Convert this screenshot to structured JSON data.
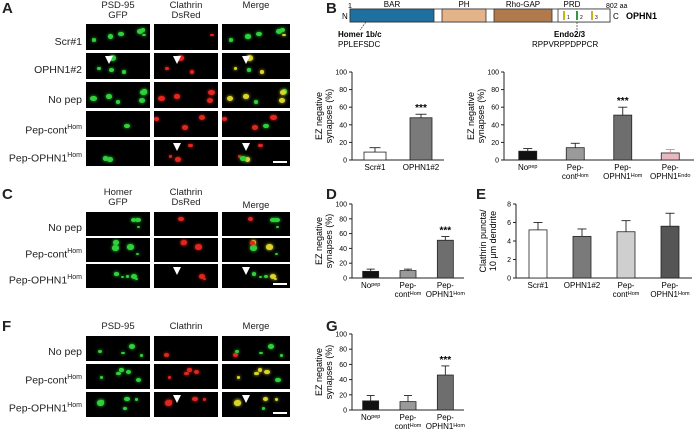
{
  "panel_labels": [
    "A",
    "B",
    "C",
    "D",
    "E",
    "F",
    "G"
  ],
  "micro": {
    "A": {
      "headers": [
        [
          "PSD-95",
          "GFP"
        ],
        [
          "Clathrin",
          "DsRed"
        ],
        [
          "Merge",
          ""
        ]
      ],
      "rows": [
        "Scr#1",
        "OPHN1#2",
        "No pep",
        "Pep-cont",
        "Pep-OPHN1"
      ],
      "row_sup": [
        "",
        "",
        "",
        "Hom",
        "Hom"
      ]
    },
    "C": {
      "headers": [
        [
          "Homer",
          "GFP"
        ],
        [
          "Clathrin",
          "DsRed"
        ],
        [
          "Merge",
          ""
        ]
      ],
      "rows": [
        "No pep",
        "Pep-cont",
        "Pep-OPHN1"
      ],
      "row_sup": [
        "",
        "Hom",
        "Hom"
      ]
    },
    "F": {
      "headers": [
        [
          "PSD-95",
          ""
        ],
        [
          "Clathrin",
          ""
        ],
        [
          "Merge",
          ""
        ]
      ],
      "rows": [
        "No pep",
        "Pep-cont",
        "Pep-OPHN1"
      ],
      "row_sup": [
        "",
        "Hom",
        "Hom"
      ]
    }
  },
  "domain_diagram": {
    "protein": "OPHN1",
    "start": "1",
    "end_label": "802 aa",
    "n_term": "N",
    "c_term": "C",
    "domains": [
      "BAR",
      "PH",
      "Rho-GAP",
      "PRD"
    ],
    "domain_colors": [
      "#1f6fa0",
      "#e3b48a",
      "#b07a4c",
      "#ffffff"
    ],
    "prd_ticks": [
      "1",
      "2",
      "3"
    ],
    "homer_site": "Homer 1b/c",
    "homer_seq": "PPLEFSDC",
    "endo_site": "Endo2/3",
    "endo_seq": "RPPVRPPDPPCR"
  },
  "chart_data": [
    {
      "panel": "B (left)",
      "type": "bar",
      "categories": [
        "Scr#1",
        "OPHN1#2"
      ],
      "values": [
        9,
        48
      ],
      "errors": [
        5,
        4
      ],
      "colors": [
        "#ffffff",
        "#7a7a7a"
      ],
      "significance": [
        "",
        "***"
      ],
      "ylabel": [
        "EZ negative",
        "synapses (%)"
      ],
      "ylim": [
        0,
        100
      ],
      "yticks": [
        0,
        20,
        40,
        60,
        80,
        100
      ]
    },
    {
      "panel": "B (right)",
      "type": "bar",
      "categories": [
        "No pep",
        "Pep-cont Hom",
        "Pep-OPHN1 Hom",
        "Pep-OPHN1 Endo"
      ],
      "values": [
        10,
        14,
        51,
        8
      ],
      "errors": [
        3,
        5,
        9,
        4
      ],
      "colors": [
        "#111111",
        "#9a9a9a",
        "#6e6e6e",
        "#e8b8c0"
      ],
      "significance": [
        "",
        "",
        "***",
        ""
      ],
      "ylabel": [
        "EZ negative",
        "synapses (%)"
      ],
      "ylim": [
        0,
        100
      ],
      "yticks": [
        0,
        20,
        40,
        60,
        80,
        100
      ]
    },
    {
      "panel": "D",
      "type": "bar",
      "categories": [
        "No pep",
        "Pep-cont Hom",
        "Pep-OPHN1 Hom"
      ],
      "values": [
        9,
        10,
        51
      ],
      "errors": [
        3,
        2,
        5
      ],
      "colors": [
        "#111111",
        "#9a9a9a",
        "#6e6e6e"
      ],
      "significance": [
        "",
        "",
        "***"
      ],
      "ylabel": [
        "EZ negative",
        "synapses (%)"
      ],
      "ylim": [
        0,
        100
      ],
      "yticks": [
        0,
        20,
        40,
        60,
        80,
        100
      ]
    },
    {
      "panel": "E",
      "type": "bar",
      "categories": [
        "Scr#1",
        "OPHN1#2",
        "Pep-cont Hom",
        "Pep-OPHN1 Hom"
      ],
      "values": [
        5.2,
        4.5,
        5.0,
        5.6
      ],
      "errors": [
        0.8,
        0.8,
        1.2,
        1.4
      ],
      "colors": [
        "#ffffff",
        "#7a7a7a",
        "#cfcfcf",
        "#555555"
      ],
      "significance": [
        "",
        "",
        "",
        ""
      ],
      "ylabel": [
        "Clathrin puncta/",
        "10 μm dendrite"
      ],
      "ylim": [
        0,
        8
      ],
      "yticks": [
        0,
        2,
        4,
        6,
        8
      ]
    },
    {
      "panel": "G",
      "type": "bar",
      "categories": [
        "No pep",
        "Pep-cont Hom",
        "Pep-OPHN1 Hom"
      ],
      "values": [
        12,
        11,
        46
      ],
      "errors": [
        7,
        8,
        12
      ],
      "colors": [
        "#111111",
        "#9a9a9a",
        "#6e6e6e"
      ],
      "significance": [
        "",
        "",
        "***"
      ],
      "ylabel": [
        "EZ negative",
        "synapses (%)"
      ],
      "ylim": [
        0,
        100
      ],
      "yticks": [
        0,
        20,
        40,
        60,
        80,
        100
      ]
    }
  ]
}
